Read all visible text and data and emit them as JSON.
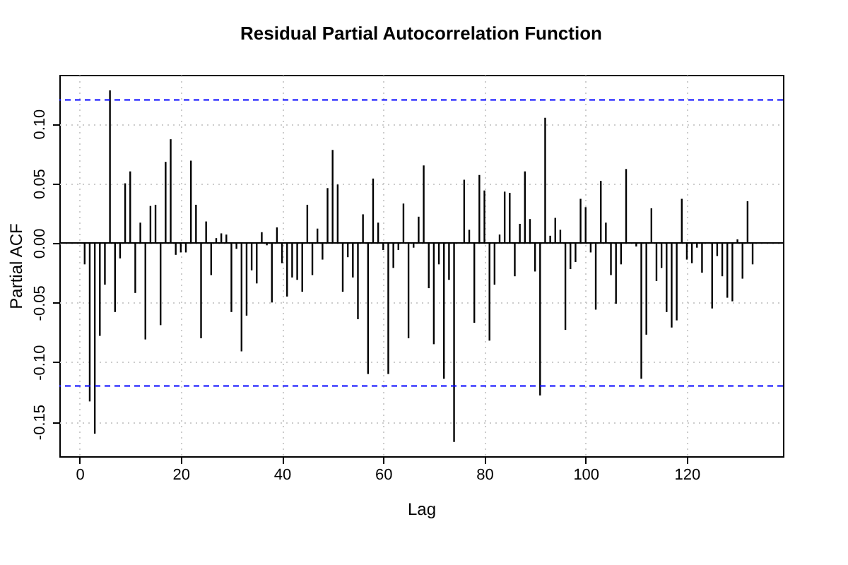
{
  "chart_data": {
    "type": "bar",
    "title": "Residual Partial Autocorrelation Function",
    "xlabel": "Lag",
    "ylabel": "Partial ACF",
    "x": [
      1,
      2,
      3,
      4,
      5,
      6,
      7,
      8,
      9,
      10,
      11,
      12,
      13,
      14,
      15,
      16,
      17,
      18,
      19,
      20,
      21,
      22,
      23,
      24,
      25,
      26,
      27,
      28,
      29,
      30,
      31,
      32,
      33,
      34,
      35,
      36,
      37,
      38,
      39,
      40,
      41,
      42,
      43,
      44,
      45,
      46,
      47,
      48,
      49,
      50,
      51,
      52,
      53,
      54,
      55,
      56,
      57,
      58,
      59,
      60,
      61,
      62,
      63,
      64,
      65,
      66,
      67,
      68,
      69,
      70,
      71,
      72,
      73,
      74,
      75,
      76,
      77,
      78,
      79,
      80,
      81,
      82,
      83,
      84,
      85,
      86,
      87,
      88,
      89,
      90,
      91,
      92,
      93,
      94,
      95,
      96,
      97,
      98,
      99,
      100,
      101,
      102,
      103,
      104,
      105,
      106,
      107,
      108,
      109,
      110,
      111,
      112,
      113,
      114,
      115,
      116,
      117,
      118,
      119,
      120,
      121,
      122,
      123,
      124,
      125,
      126,
      127,
      128,
      129,
      130,
      131,
      132,
      133
    ],
    "series": [
      {
        "color": "#000000",
        "values": [
          -0.018,
          -0.133,
          -0.16,
          -0.078,
          -0.035,
          0.128,
          -0.058,
          -0.013,
          0.05,
          0.06,
          -0.042,
          0.017,
          -0.081,
          0.031,
          0.032,
          -0.069,
          0.068,
          0.087,
          -0.01,
          -0.008,
          -0.008,
          0.069,
          0.032,
          -0.08,
          0.018,
          -0.027,
          0.004,
          0.008,
          0.007,
          -0.058,
          -0.005,
          -0.091,
          -0.061,
          -0.023,
          -0.034,
          0.009,
          -0.002,
          -0.05,
          0.013,
          -0.017,
          -0.045,
          -0.029,
          -0.031,
          -0.041,
          0.032,
          -0.027,
          0.012,
          -0.014,
          0.046,
          0.078,
          0.049,
          -0.041,
          -0.012,
          -0.029,
          -0.064,
          0.024,
          -0.11,
          0.054,
          0.017,
          -0.006,
          -0.11,
          -0.021,
          -0.006,
          0.033,
          -0.08,
          -0.004,
          0.022,
          0.065,
          -0.038,
          -0.085,
          -0.018,
          -0.114,
          -0.031,
          -0.167,
          null,
          0.053,
          0.011,
          -0.067,
          0.057,
          0.044,
          -0.082,
          -0.035,
          0.007,
          0.043,
          0.042,
          -0.028,
          0.016,
          0.06,
          0.02,
          -0.024,
          -0.128,
          0.105,
          0.006,
          0.021,
          0.011,
          -0.073,
          -0.022,
          -0.016,
          0.037,
          0.03,
          -0.008,
          -0.056,
          0.052,
          0.017,
          -0.027,
          -0.051,
          -0.018,
          0.062,
          null,
          -0.003,
          -0.114,
          -0.077,
          0.029,
          -0.032,
          -0.021,
          -0.058,
          -0.071,
          -0.065,
          0.037,
          -0.014,
          -0.017,
          -0.004,
          -0.025,
          0.0,
          -0.055,
          -0.011,
          -0.028,
          -0.046,
          -0.049,
          0.003,
          -0.03,
          0.035,
          -0.018
        ]
      }
    ],
    "xlim": [
      -4,
      139
    ],
    "xticks": [
      0,
      20,
      40,
      60,
      80,
      100,
      120
    ],
    "ylim": [
      -0.179,
      0.141
    ],
    "yticks": [
      {
        "value": -0.15,
        "label": "-0.15"
      },
      {
        "value": -0.1,
        "label": "-0.10"
      },
      {
        "value": -0.05,
        "label": "-0.05"
      },
      {
        "value": 0,
        "label": "0.00"
      },
      {
        "value": 0.05,
        "label": "0.05"
      },
      {
        "value": 0.1,
        "label": "0.10"
      }
    ],
    "ref_lines": [
      {
        "axis": "y",
        "value": 0.12,
        "color": "#0000ff",
        "line_style": "dashed"
      },
      {
        "axis": "y",
        "value": -0.12,
        "color": "#0000ff",
        "line_style": "dashed"
      },
      {
        "axis": "y",
        "value": 0,
        "color": "#000000",
        "line_style": "solid"
      }
    ],
    "grid": true
  }
}
